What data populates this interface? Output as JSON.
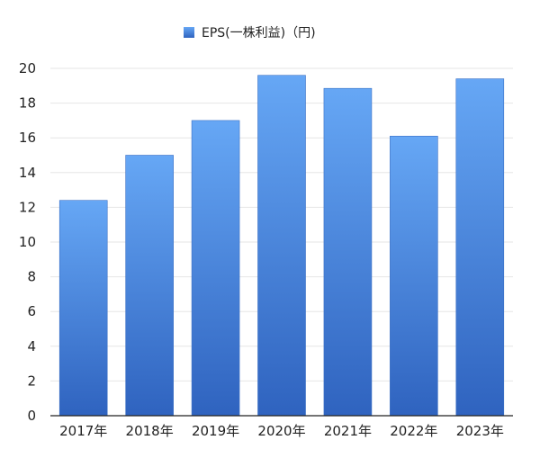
{
  "chart_data": {
    "type": "bar",
    "categories": [
      "2017年",
      "2018年",
      "2019年",
      "2020年",
      "2021年",
      "2022年",
      "2023年"
    ],
    "series": [
      {
        "name": "EPS(一株利益)（円)",
        "values": [
          12.4,
          15.0,
          17.0,
          19.6,
          18.85,
          16.1,
          19.4
        ]
      }
    ],
    "ylim": [
      0,
      20
    ],
    "yticks": [
      0,
      2,
      4,
      6,
      8,
      10,
      12,
      14,
      16,
      18,
      20
    ],
    "grid": true,
    "legend": "top-center",
    "colors": {
      "bar_top": "#66a7f5",
      "bar_bottom": "#2f63bf",
      "grid": "#e6e6e6",
      "axis": "#222222"
    }
  }
}
